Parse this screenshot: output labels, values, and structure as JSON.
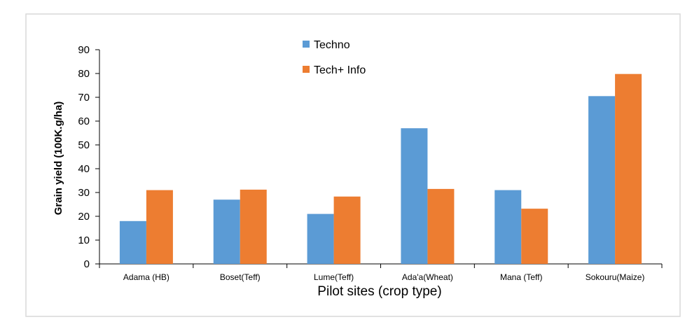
{
  "chart_data": {
    "type": "bar",
    "title": "",
    "xlabel": "Pilot sites (crop type)",
    "ylabel": "Grain yield (100K.g/ha)",
    "ylim": [
      0,
      90
    ],
    "yticks": [
      0,
      10,
      20,
      30,
      40,
      50,
      60,
      70,
      80,
      90
    ],
    "categories": [
      "Adama (HB)",
      "Boset(Teff)",
      "Lume(Teff)",
      "Ada'a(Wheat)",
      "Mana (Teff)",
      "Sokouru(Maize)"
    ],
    "series": [
      {
        "name": "Techno",
        "color": "#5b9bd5",
        "values": [
          18,
          27,
          21,
          57,
          31,
          70.5
        ]
      },
      {
        "name": "Tech+ Info",
        "color": "#ed7d31",
        "values": [
          31,
          31.2,
          28.3,
          31.5,
          23.2,
          79.8
        ]
      }
    ],
    "grid": false,
    "legend_position": "top-center"
  }
}
